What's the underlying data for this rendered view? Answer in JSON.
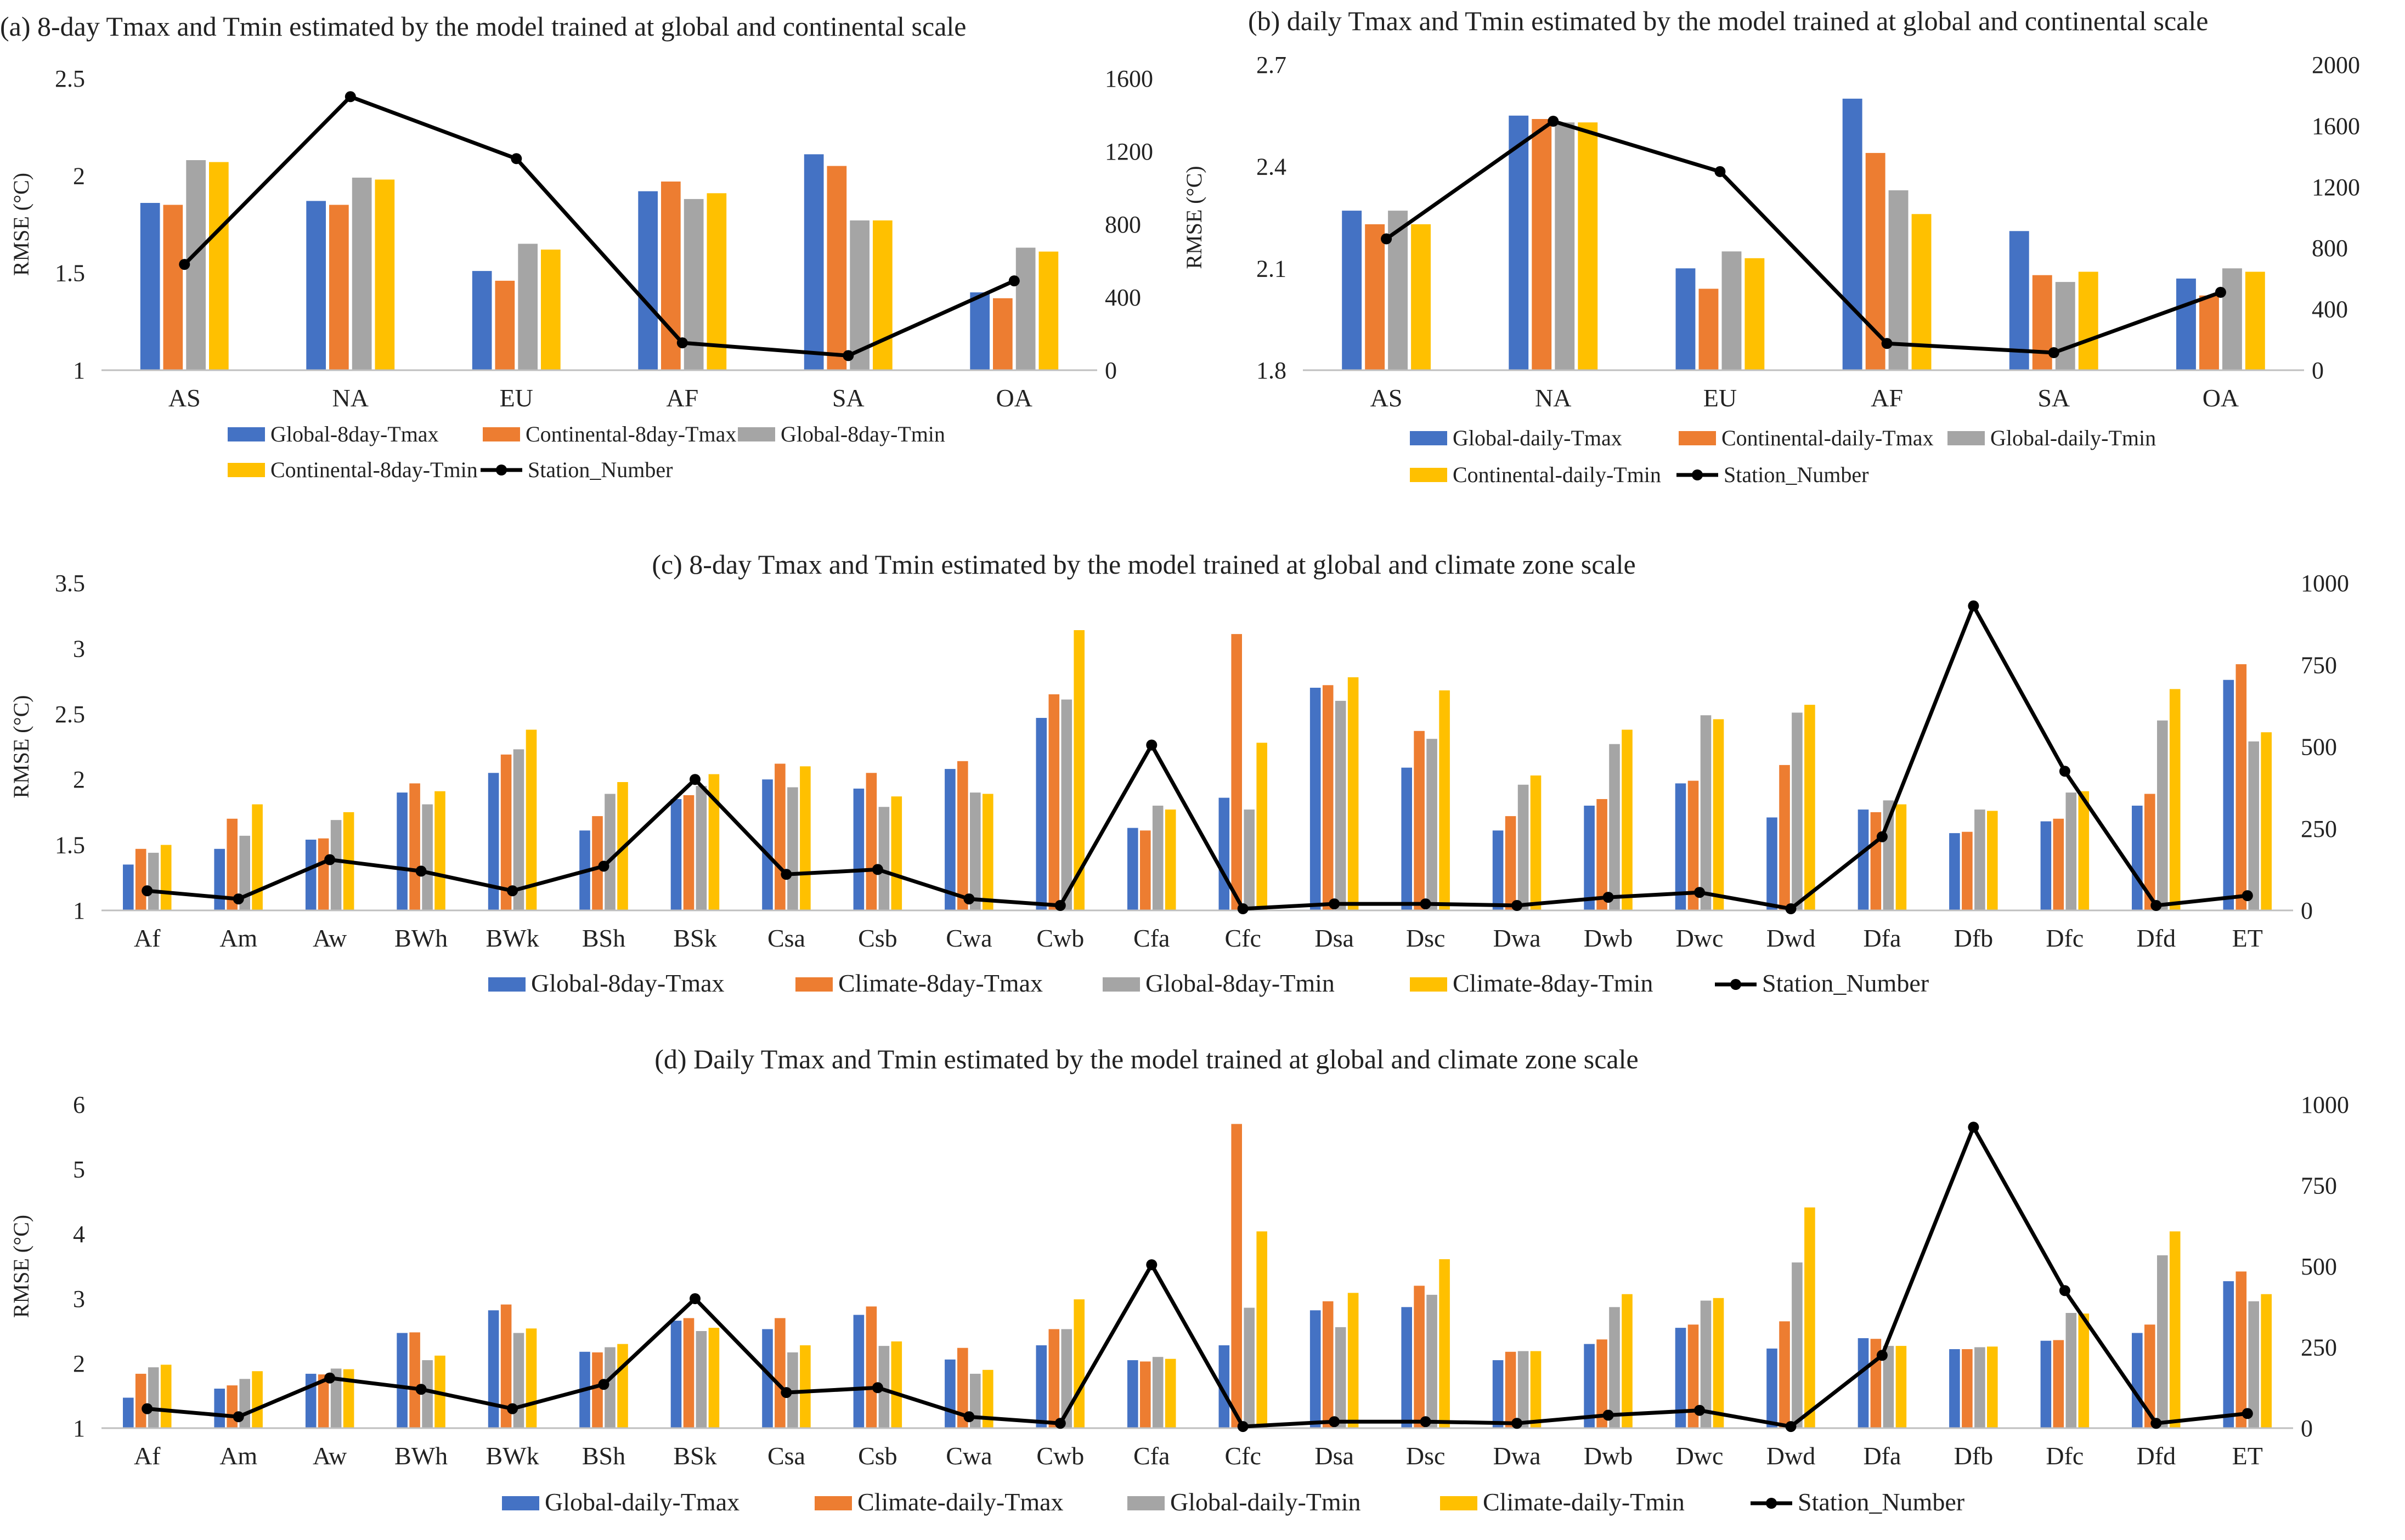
{
  "colors": {
    "global_tmax": "#4472C4",
    "regional_tmax": "#ED7D31",
    "global_tmin": "#A5A5A5",
    "regional_tmin": "#FFC000",
    "station": "#000000"
  },
  "chart_data": [
    {
      "id": "a",
      "type": "bar",
      "title": "(a) 8-day Tmax and Tmin estimated by the model trained at global and continental scale",
      "ylabel": "RMSE (°C)",
      "ylim": [
        1,
        2.5
      ],
      "yticks": [
        "1",
        "1.5",
        "2",
        "2.5"
      ],
      "y2lim": [
        0,
        1600
      ],
      "y2ticks": [
        "0",
        "400",
        "800",
        "1200",
        "1600"
      ],
      "categories": [
        "AS",
        "NA",
        "EU",
        "AF",
        "SA",
        "OA"
      ],
      "series": [
        {
          "name": "Global-8day-Tmax",
          "values": [
            1.86,
            1.87,
            1.51,
            1.92,
            2.11,
            1.4
          ]
        },
        {
          "name": "Continental-8day-Tmax",
          "values": [
            1.85,
            1.85,
            1.46,
            1.97,
            2.05,
            1.37
          ]
        },
        {
          "name": "Global-8day-Tmin",
          "values": [
            2.08,
            1.99,
            1.65,
            1.88,
            1.77,
            1.63
          ]
        },
        {
          "name": "Continental-8day-Tmin",
          "values": [
            2.07,
            1.98,
            1.62,
            1.91,
            1.77,
            1.61
          ]
        }
      ],
      "line": {
        "name": "Station_Number",
        "values": [
          580,
          1500,
          1160,
          150,
          80,
          490
        ]
      }
    },
    {
      "id": "b",
      "type": "bar",
      "title": "(b) daily Tmax and Tmin estimated by the model trained at global and continental  scale",
      "ylabel": "RMSE (°C)",
      "ylim": [
        1.8,
        2.7
      ],
      "yticks": [
        "1.8",
        "2.1",
        "2.4",
        "2.7"
      ],
      "y2lim": [
        0,
        2000
      ],
      "y2ticks": [
        "0",
        "400",
        "800",
        "1200",
        "1600",
        "2000"
      ],
      "categories": [
        "AS",
        "NA",
        "EU",
        "AF",
        "SA",
        "OA"
      ],
      "series": [
        {
          "name": "Global-daily-Tmax",
          "values": [
            2.27,
            2.55,
            2.1,
            2.6,
            2.21,
            2.07
          ]
        },
        {
          "name": "Continental-daily-Tmax",
          "values": [
            2.23,
            2.54,
            2.04,
            2.44,
            2.08,
            2.02
          ]
        },
        {
          "name": "Global-daily-Tmin",
          "values": [
            2.27,
            2.53,
            2.15,
            2.33,
            2.06,
            2.1
          ]
        },
        {
          "name": "Continental-daily-Tmin",
          "values": [
            2.23,
            2.53,
            2.13,
            2.26,
            2.09,
            2.09
          ]
        }
      ],
      "line": {
        "name": "Station_Number",
        "values": [
          860,
          1630,
          1300,
          175,
          115,
          510
        ]
      }
    },
    {
      "id": "c",
      "type": "bar",
      "title": "(c) 8-day Tmax and Tmin estimated by the model trained at global and climate zone scale",
      "ylabel": "RMSE (°C)",
      "ylim": [
        1,
        3.5
      ],
      "yticks": [
        "1",
        "1.5",
        "2",
        "2.5",
        "3",
        "3.5"
      ],
      "y2lim": [
        0,
        1000
      ],
      "y2ticks": [
        "0",
        "250",
        "500",
        "750",
        "1000"
      ],
      "categories": [
        "Af",
        "Am",
        "Aw",
        "BWh",
        "BWk",
        "BSh",
        "BSk",
        "Csa",
        "Csb",
        "Cwa",
        "Cwb",
        "Cfa",
        "Cfc",
        "Dsa",
        "Dsc",
        "Dwa",
        "Dwb",
        "Dwc",
        "Dwd",
        "Dfa",
        "Dfb",
        "Dfc",
        "Dfd",
        "ET"
      ],
      "series": [
        {
          "name": "Global-8day-Tmax",
          "values": [
            1.35,
            1.47,
            1.54,
            1.9,
            2.05,
            1.61,
            1.85,
            2.0,
            1.93,
            2.08,
            2.47,
            1.63,
            1.86,
            2.7,
            2.09,
            1.61,
            1.8,
            1.97,
            1.71,
            1.77,
            1.59,
            1.68,
            1.8,
            2.76
          ]
        },
        {
          "name": "Climate-8day-Tmax",
          "values": [
            1.47,
            1.7,
            1.55,
            1.97,
            2.19,
            1.72,
            1.88,
            2.12,
            2.05,
            2.14,
            2.65,
            1.61,
            3.11,
            2.72,
            2.37,
            1.72,
            1.85,
            1.99,
            2.11,
            1.75,
            1.6,
            1.7,
            1.89,
            2.88
          ]
        },
        {
          "name": "Global-8day-Tmin",
          "values": [
            1.44,
            1.57,
            1.69,
            1.81,
            2.23,
            1.89,
            1.95,
            1.94,
            1.79,
            1.9,
            2.61,
            1.8,
            1.77,
            2.6,
            2.31,
            1.96,
            2.27,
            2.49,
            2.51,
            1.84,
            1.77,
            1.9,
            2.45,
            2.29
          ]
        },
        {
          "name": "Climate-8day-Tmin",
          "values": [
            1.5,
            1.81,
            1.75,
            1.91,
            2.38,
            1.98,
            2.04,
            2.1,
            1.87,
            1.89,
            3.14,
            1.77,
            2.28,
            2.78,
            2.68,
            2.03,
            2.38,
            2.46,
            2.57,
            1.81,
            1.76,
            1.91,
            2.69,
            2.36
          ]
        }
      ],
      "line": {
        "name": "Station_Number",
        "values": [
          60,
          35,
          155,
          120,
          60,
          135,
          400,
          110,
          125,
          35,
          15,
          505,
          5,
          20,
          20,
          15,
          40,
          55,
          5,
          225,
          930,
          425,
          15,
          45
        ]
      }
    },
    {
      "id": "d",
      "type": "bar",
      "title": "(d) Daily Tmax and Tmin estimated by the model trained at global and climate zone scale",
      "ylabel": "RMSE (°C)",
      "ylim": [
        1,
        6
      ],
      "yticks": [
        "1",
        "2",
        "3",
        "4",
        "5",
        "6"
      ],
      "y2lim": [
        0,
        1000
      ],
      "y2ticks": [
        "0",
        "250",
        "500",
        "750",
        "1000"
      ],
      "categories": [
        "Af",
        "Am",
        "Aw",
        "BWh",
        "BWk",
        "BSh",
        "BSk",
        "Csa",
        "Csb",
        "Cwa",
        "Cwb",
        "Cfa",
        "Cfc",
        "Dsa",
        "Dsc",
        "Dwa",
        "Dwb",
        "Dwc",
        "Dwd",
        "Dfa",
        "Dfb",
        "Dfc",
        "Dfd",
        "ET"
      ],
      "series": [
        {
          "name": "Global-daily-Tmax",
          "values": [
            1.47,
            1.61,
            1.84,
            2.47,
            2.82,
            2.18,
            2.66,
            2.53,
            2.75,
            2.06,
            2.28,
            2.05,
            2.28,
            2.82,
            2.87,
            2.05,
            2.3,
            2.55,
            2.23,
            2.39,
            2.22,
            2.35,
            2.47,
            3.27
          ]
        },
        {
          "name": "Climate-daily-Tmax",
          "values": [
            1.84,
            1.66,
            1.83,
            2.48,
            2.91,
            2.17,
            2.7,
            2.7,
            2.88,
            2.24,
            2.53,
            2.03,
            5.7,
            2.96,
            3.2,
            2.18,
            2.37,
            2.6,
            2.65,
            2.38,
            2.22,
            2.36,
            2.6,
            3.42
          ]
        },
        {
          "name": "Global-daily-Tmin",
          "values": [
            1.94,
            1.76,
            1.92,
            2.05,
            2.47,
            2.25,
            2.5,
            2.17,
            2.27,
            1.84,
            2.53,
            2.1,
            2.86,
            2.56,
            3.06,
            2.19,
            2.87,
            2.97,
            3.56,
            2.27,
            2.25,
            2.78,
            3.67,
            2.96
          ]
        },
        {
          "name": "Climate-daily-Tmin",
          "values": [
            1.98,
            1.88,
            1.91,
            2.12,
            2.54,
            2.3,
            2.55,
            2.28,
            2.34,
            1.9,
            2.99,
            2.07,
            4.04,
            3.09,
            3.61,
            2.19,
            3.07,
            3.01,
            4.41,
            2.27,
            2.26,
            2.77,
            4.04,
            3.07
          ]
        }
      ],
      "line": {
        "name": "Station_Number",
        "values": [
          60,
          35,
          155,
          120,
          60,
          135,
          400,
          110,
          125,
          35,
          15,
          505,
          5,
          20,
          20,
          15,
          40,
          55,
          5,
          225,
          930,
          425,
          15,
          45
        ]
      }
    }
  ]
}
